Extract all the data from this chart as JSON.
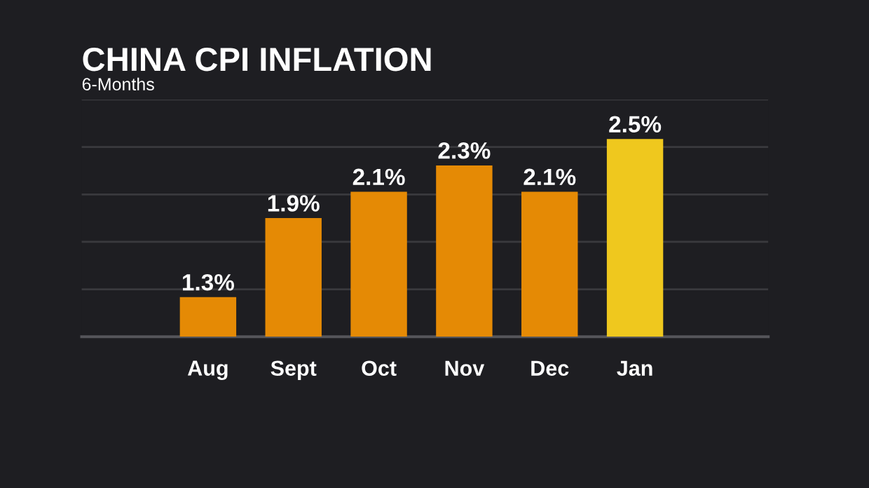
{
  "chart_data": {
    "type": "bar",
    "title": "CHINA CPI INFLATION",
    "subtitle": "6-Months",
    "categories": [
      "Aug",
      "Sept",
      "Oct",
      "Nov",
      "Dec",
      "Jan"
    ],
    "values": [
      1.3,
      1.9,
      2.1,
      2.3,
      2.1,
      2.5
    ],
    "value_labels": [
      "1.3%",
      "1.9%",
      "2.1%",
      "2.3%",
      "2.1%",
      "2.5%"
    ],
    "colors": [
      "#e58a05",
      "#e58a05",
      "#e58a05",
      "#e58a05",
      "#e58a05",
      "#efc81e"
    ],
    "ylim": [
      1.0,
      2.8
    ],
    "yticks": [
      {
        "value": 1.36,
        "label": null
      },
      {
        "value": 1.72,
        "label": null
      },
      {
        "value": 2.08,
        "label": null
      },
      {
        "value": 2.44,
        "label": null
      },
      {
        "value": 2.8,
        "label": null
      }
    ],
    "grid": "y",
    "tick_labels": "x"
  }
}
